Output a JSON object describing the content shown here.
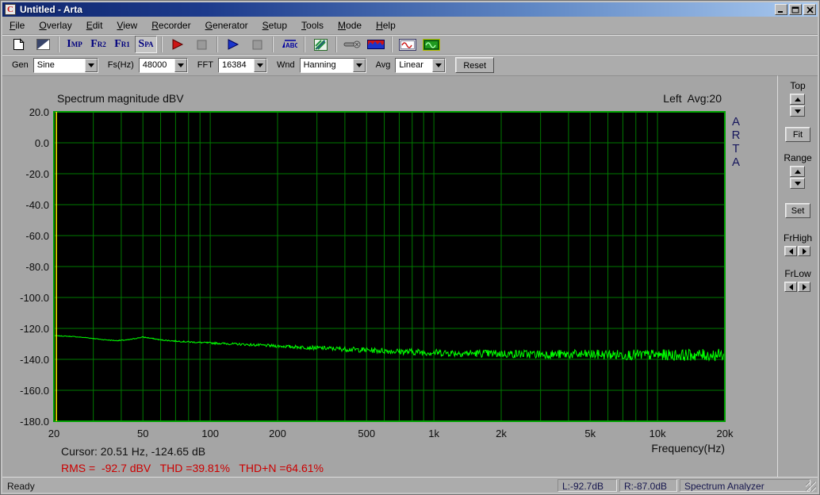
{
  "window": {
    "title": "Untitled - Arta",
    "app_icon_glyph": "C",
    "controls": [
      "minimize",
      "maximize",
      "close"
    ]
  },
  "menu": {
    "items": [
      {
        "label": "File"
      },
      {
        "label": "Overlay"
      },
      {
        "label": "Edit"
      },
      {
        "label": "View"
      },
      {
        "label": "Recorder"
      },
      {
        "label": "Generator"
      },
      {
        "label": "Setup"
      },
      {
        "label": "Tools"
      },
      {
        "label": "Mode"
      },
      {
        "label": "Help"
      }
    ]
  },
  "toolbar": {
    "buttons": [
      {
        "name": "new-file-button",
        "icon": "new-file-icon"
      },
      {
        "name": "scale-button",
        "icon": "half-fill-scale-icon"
      },
      {
        "sep": true
      },
      {
        "name": "impulse-response-button",
        "label": "IMP"
      },
      {
        "name": "frequency-response-2ch-button",
        "label": "FR2"
      },
      {
        "name": "frequency-response-1ch-button",
        "label": "FR1"
      },
      {
        "name": "spectrum-analyzer-button",
        "label": "SPA",
        "pressed": true
      },
      {
        "sep": true
      },
      {
        "name": "record-button",
        "icon": "red-play-icon"
      },
      {
        "name": "record-stop-button",
        "icon": "stop-icon"
      },
      {
        "sep": true
      },
      {
        "name": "play-button",
        "icon": "blue-play-icon"
      },
      {
        "name": "play-stop-button",
        "icon": "stop-icon"
      },
      {
        "sep": true
      },
      {
        "name": "labels-button",
        "icon": "abc-label-icon"
      },
      {
        "sep": true
      },
      {
        "name": "overlay-scale-button",
        "icon": "green-diagonal-icon"
      },
      {
        "sep": true
      },
      {
        "name": "microphone-button",
        "icon": "microphone-icon"
      },
      {
        "name": "spectrum-view-button",
        "icon": "mountains-icon"
      },
      {
        "sep": true
      },
      {
        "name": "signal-window-button",
        "icon": "sine-window-icon"
      },
      {
        "name": "generator-setup-button",
        "icon": "generator-icon"
      }
    ]
  },
  "controls": {
    "gen_label": "Gen",
    "gen_value": "Sine",
    "fs_label": "Fs(Hz)",
    "fs_value": "48000",
    "fft_label": "FFT",
    "fft_value": "16384",
    "wnd_label": "Wnd",
    "wnd_value": "Hanning",
    "avg_label": "Avg",
    "avg_value": "Linear",
    "reset_label": "Reset"
  },
  "chart": {
    "title": "Spectrum magnitude dBV",
    "channel_info": "Left  Avg:20",
    "watermark": "ARTA",
    "xlabel": "Frequency(Hz)",
    "cursor_text": "Cursor: 20.51 Hz, -124.65 dB",
    "rms_text": "RMS =  -92.7 dBV   THD =39.81%   THD+N =64.61%",
    "colors": {
      "plot_bg": "#000000",
      "grid": "#007a00",
      "border": "#00a000",
      "trace": "#00ff00",
      "cursor": "#ffff00",
      "rms_text": "#cc0000"
    }
  },
  "chart_data": {
    "type": "line",
    "title": "Spectrum magnitude dBV",
    "xlabel": "Frequency(Hz)",
    "ylabel": "dBV",
    "x_scale": "log",
    "xlim": [
      20,
      20000
    ],
    "ylim": [
      -180,
      20
    ],
    "grid": true,
    "y_tick_labels": [
      "20.0",
      "0.0",
      "-20.0",
      "-40.0",
      "-60.0",
      "-80.0",
      "-100.0",
      "-120.0",
      "-140.0",
      "-160.0",
      "-180.0"
    ],
    "y_tick_values": [
      20,
      0,
      -20,
      -40,
      -60,
      -80,
      -100,
      -120,
      -140,
      -160,
      -180
    ],
    "x_ticks": [
      {
        "f": 20,
        "label": "20"
      },
      {
        "f": 50,
        "label": "50"
      },
      {
        "f": 100,
        "label": "100"
      },
      {
        "f": 200,
        "label": "200"
      },
      {
        "f": 500,
        "label": "500"
      },
      {
        "f": 1000,
        "label": "1k"
      },
      {
        "f": 2000,
        "label": "2k"
      },
      {
        "f": 5000,
        "label": "5k"
      },
      {
        "f": 10000,
        "label": "10k"
      },
      {
        "f": 20000,
        "label": "20k"
      }
    ],
    "cursor": {
      "freq_hz": 20.51,
      "db": -124.65
    },
    "series": [
      {
        "name": "Left",
        "color": "#00ff00",
        "baseline_db": [
          [
            20,
            -124.7
          ],
          [
            24,
            -125.2
          ],
          [
            28,
            -126.0
          ],
          [
            33,
            -127.2
          ],
          [
            38,
            -127.9
          ],
          [
            43,
            -127.4
          ],
          [
            47,
            -126.3
          ],
          [
            50,
            -125.6
          ],
          [
            54,
            -126.3
          ],
          [
            60,
            -127.4
          ],
          [
            70,
            -128.2
          ],
          [
            80,
            -128.7
          ],
          [
            90,
            -129.1
          ],
          [
            100,
            -129.4
          ],
          [
            130,
            -130.1
          ],
          [
            170,
            -130.9
          ],
          [
            200,
            -131.4
          ],
          [
            260,
            -132.2
          ],
          [
            350,
            -133.0
          ],
          [
            500,
            -134.0
          ],
          [
            700,
            -134.9
          ],
          [
            1000,
            -135.6
          ],
          [
            1500,
            -136.1
          ],
          [
            2000,
            -136.4
          ],
          [
            3000,
            -136.7
          ],
          [
            5000,
            -136.9
          ],
          [
            8000,
            -137.1
          ],
          [
            12000,
            -137.2
          ],
          [
            20000,
            -137.2
          ]
        ],
        "noise_spread_db": [
          [
            20,
            0.2
          ],
          [
            60,
            0.35
          ],
          [
            100,
            0.6
          ],
          [
            200,
            1.0
          ],
          [
            400,
            1.6
          ],
          [
            800,
            2.2
          ],
          [
            1500,
            2.6
          ],
          [
            3000,
            3.0
          ],
          [
            6000,
            3.4
          ],
          [
            12000,
            3.9
          ],
          [
            20000,
            4.2
          ]
        ]
      }
    ],
    "measurements": {
      "rms_dbv": -92.7,
      "thd_percent": 39.81,
      "thd_n_percent": 64.61
    }
  },
  "side_panel": {
    "top_label": "Top",
    "fit_label": "Fit",
    "range_label": "Range",
    "set_label": "Set",
    "frhigh_label": "FrHigh",
    "frlow_label": "FrLow"
  },
  "status_bar": {
    "ready": "Ready",
    "panels": [
      "L:-92.7dB",
      "R:-87.0dB",
      "Spectrum Analyzer"
    ]
  }
}
